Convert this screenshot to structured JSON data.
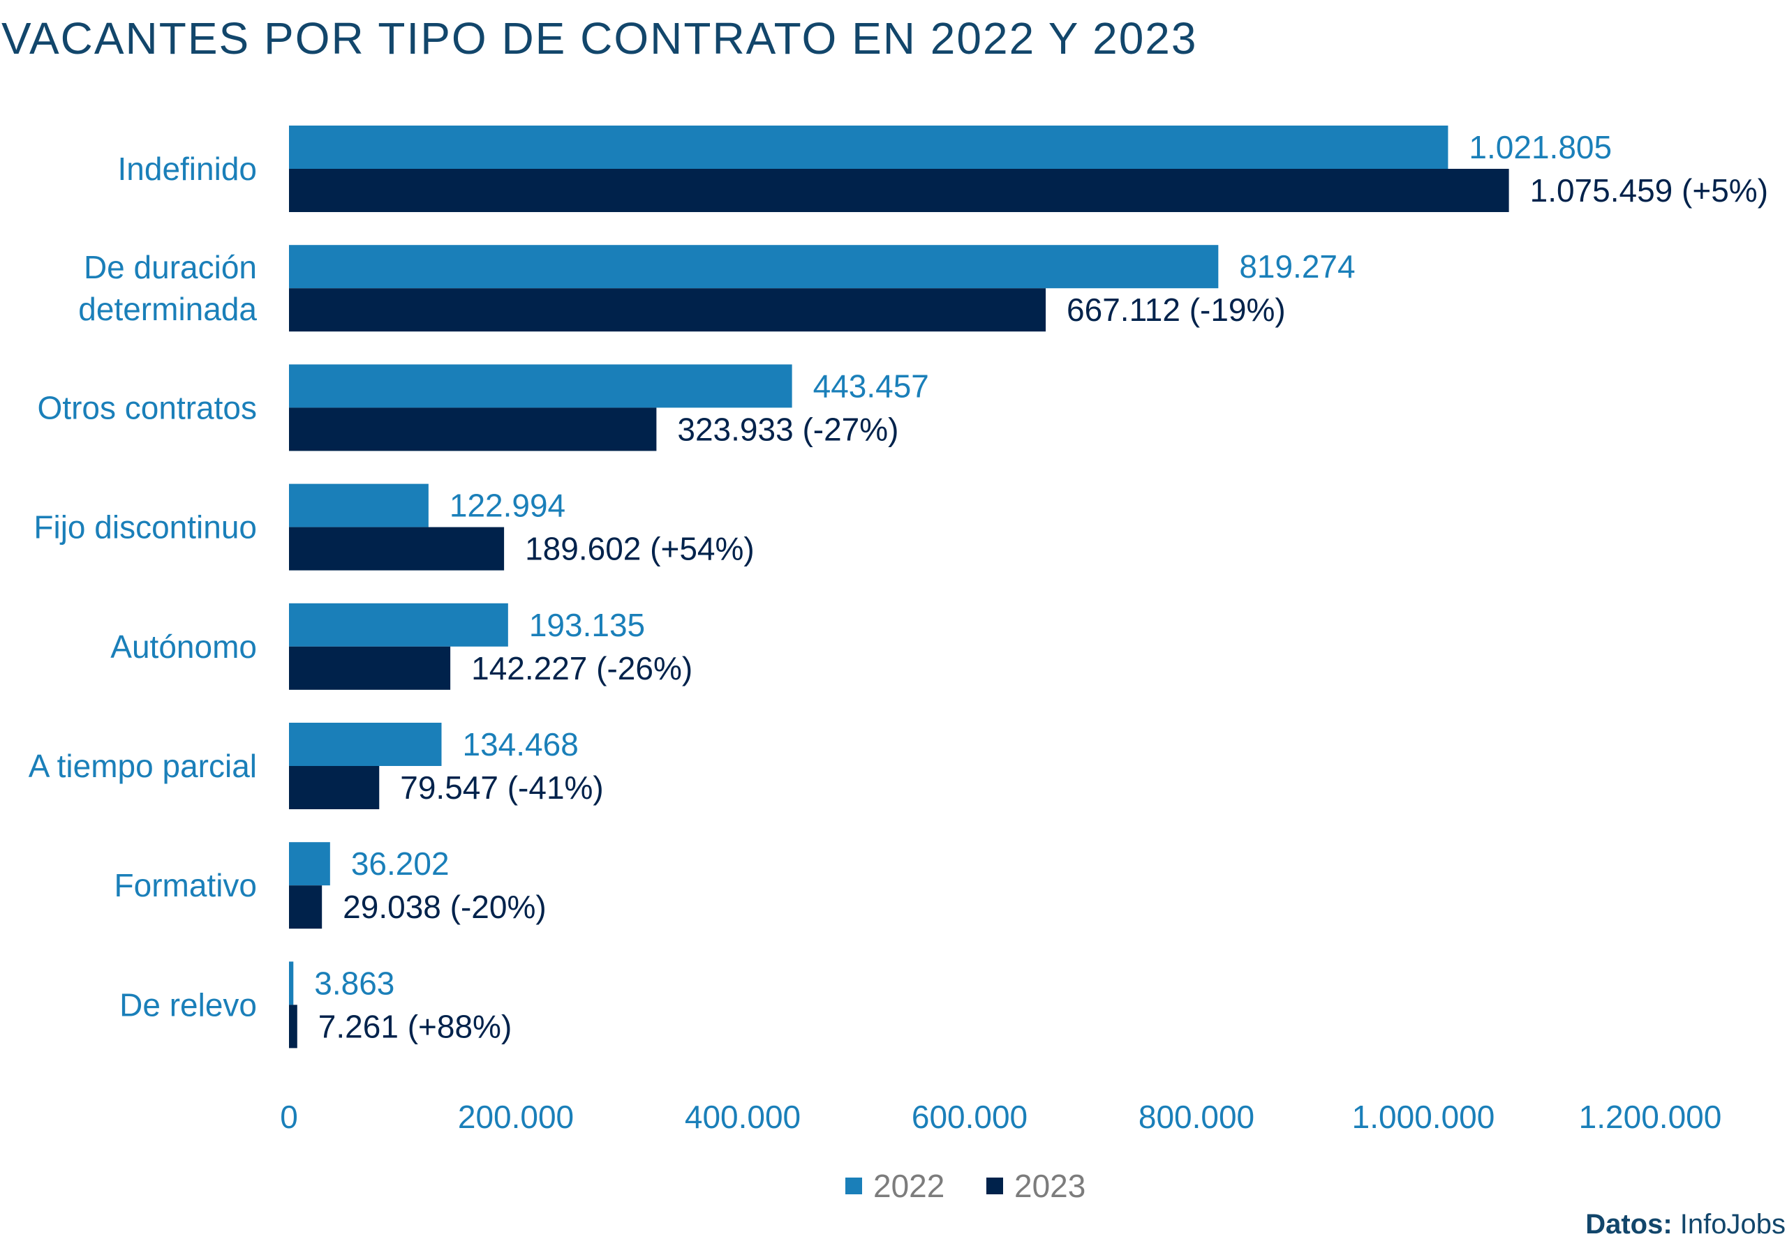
{
  "colors": {
    "title": "#12466b",
    "series_2022": "#1a7fb9",
    "series_2023": "#00224b",
    "axis_text": "#1a7fb9",
    "legend_text": "#7c7c7c",
    "source_text": "#12466b"
  },
  "source": {
    "label": "Datos:",
    "value": "InfoJobs"
  },
  "chart_data": {
    "type": "bar",
    "orientation": "horizontal",
    "title": "VACANTES POR TIPO DE CONTRATO EN 2022 Y 2023",
    "categories": [
      [
        "Indefinido"
      ],
      [
        "De duración",
        "determinada"
      ],
      [
        "Otros contratos"
      ],
      [
        "Fijo discontinuo"
      ],
      [
        "Autónomo"
      ],
      [
        "A tiempo parcial"
      ],
      [
        "Formativo"
      ],
      [
        "De relevo"
      ]
    ],
    "series": [
      {
        "name": "2022",
        "values": [
          1021805,
          819274,
          443457,
          122994,
          193135,
          134468,
          36202,
          3863
        ],
        "labels": [
          "1.021.805",
          "819.274",
          "443.457",
          "122.994",
          "193.135",
          "134.468",
          "36.202",
          "3.863"
        ]
      },
      {
        "name": "2023",
        "values": [
          1075459,
          667112,
          323933,
          189602,
          142227,
          79547,
          29038,
          7261
        ],
        "labels": [
          "1.075.459 (+5%)",
          "667.112 (-19%)",
          "323.933 (-27%)",
          "189.602 (+54%)",
          "142.227 (-26%)",
          "79.547 (-41%)",
          "29.038 (-20%)",
          "7.261 (+88%)"
        ]
      }
    ],
    "xlim": [
      0,
      1200000
    ],
    "xticks": [
      0,
      200000,
      400000,
      600000,
      800000,
      1000000,
      1200000
    ],
    "xtick_labels": [
      "0",
      "200.000",
      "400.000",
      "600.000",
      "800.000",
      "1.000.000",
      "1.200.000"
    ],
    "grid": false,
    "legend_position": "bottom"
  }
}
